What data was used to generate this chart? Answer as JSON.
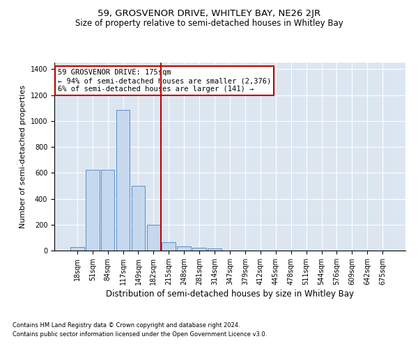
{
  "title": "59, GROSVENOR DRIVE, WHITLEY BAY, NE26 2JR",
  "subtitle": "Size of property relative to semi-detached houses in Whitley Bay",
  "xlabel": "Distribution of semi-detached houses by size in Whitley Bay",
  "ylabel": "Number of semi-detached properties",
  "footnote1": "Contains HM Land Registry data © Crown copyright and database right 2024.",
  "footnote2": "Contains public sector information licensed under the Open Government Licence v3.0.",
  "bar_labels": [
    "18sqm",
    "51sqm",
    "84sqm",
    "117sqm",
    "149sqm",
    "182sqm",
    "215sqm",
    "248sqm",
    "281sqm",
    "314sqm",
    "347sqm",
    "379sqm",
    "412sqm",
    "445sqm",
    "478sqm",
    "511sqm",
    "544sqm",
    "576sqm",
    "609sqm",
    "642sqm",
    "675sqm"
  ],
  "bar_values": [
    28,
    625,
    625,
    1085,
    500,
    200,
    65,
    32,
    20,
    15,
    0,
    0,
    0,
    0,
    0,
    0,
    0,
    0,
    0,
    0,
    0
  ],
  "bar_color": "#c5d8ed",
  "bar_edge_color": "#5b8fc9",
  "vline_x": 5.5,
  "vline_color": "#c00000",
  "annotation_title": "59 GROSVENOR DRIVE: 175sqm",
  "annotation_line1": "← 94% of semi-detached houses are smaller (2,376)",
  "annotation_line2": "6% of semi-detached houses are larger (141) →",
  "annotation_box_color": "#c00000",
  "ylim": [
    0,
    1450
  ],
  "plot_background": "#dce6f1",
  "grid_color": "#ffffff",
  "title_fontsize": 9.5,
  "subtitle_fontsize": 8.5,
  "ylabel_fontsize": 8,
  "xlabel_fontsize": 8.5,
  "tick_fontsize": 7,
  "annot_fontsize": 7.5,
  "footnote_fontsize": 6
}
